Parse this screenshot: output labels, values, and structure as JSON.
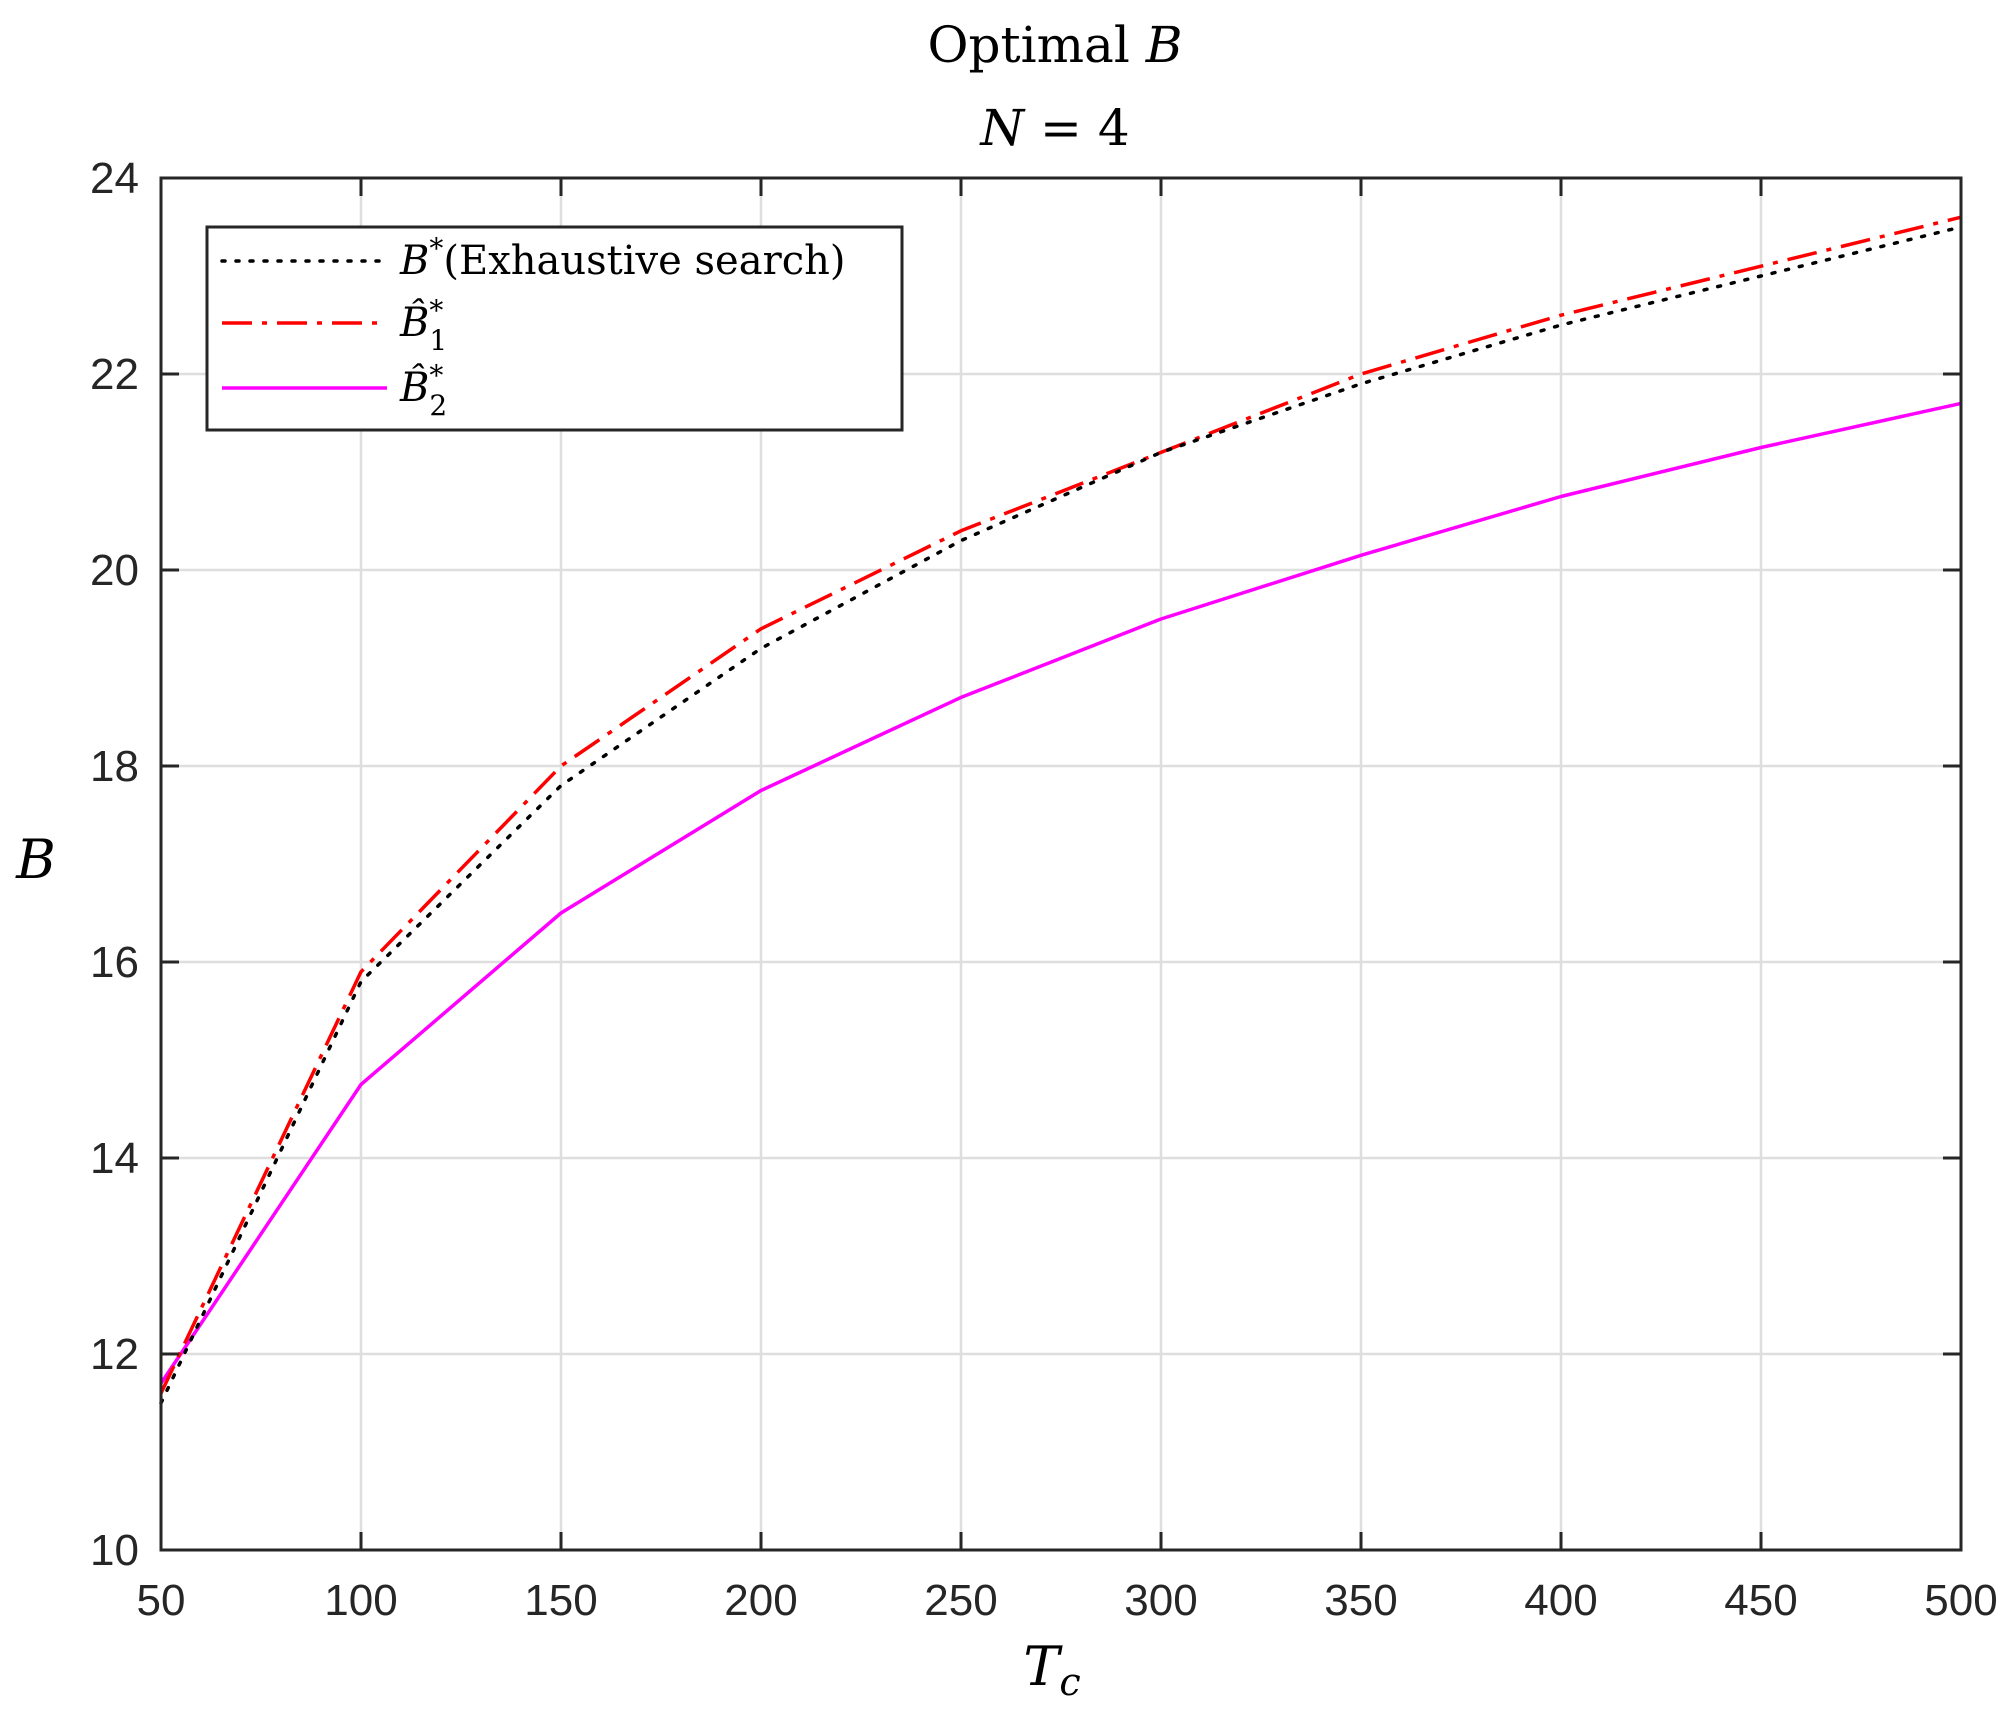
{
  "chart_data": {
    "type": "line",
    "title": "Optimal B",
    "title_parts": {
      "prefix": "Optimal ",
      "variable": "B"
    },
    "subtitle": "N = 4",
    "subtitle_parts": {
      "lhs": "N",
      "op": " = ",
      "rhs": "4"
    },
    "xlabel": "Tc",
    "xlabel_parts": {
      "main": "T",
      "sub": "c"
    },
    "ylabel": "B",
    "xlim": [
      50,
      500
    ],
    "ylim": [
      10,
      24
    ],
    "xticks": [
      50,
      100,
      150,
      200,
      250,
      300,
      350,
      400,
      450,
      500
    ],
    "yticks": [
      10,
      12,
      14,
      16,
      18,
      20,
      22,
      24
    ],
    "grid": true,
    "legend_position": "top-left",
    "x": [
      50,
      100,
      150,
      200,
      250,
      300,
      350,
      400,
      450,
      500
    ],
    "series": [
      {
        "name": "B*(Exhaustive search)",
        "name_parts": {
          "main": "B",
          "sup": "*",
          "rest": "(Exhaustive search)"
        },
        "style": "dotted",
        "color": "#000000",
        "values": [
          11.5,
          15.8,
          17.8,
          19.2,
          20.3,
          21.2,
          21.9,
          22.5,
          23.0,
          23.5
        ]
      },
      {
        "name": "B̂1*",
        "name_parts": {
          "main": "B̂",
          "sup": "*",
          "sub": "1"
        },
        "style": "dashdot",
        "color": "#ff0000",
        "values": [
          11.6,
          15.9,
          18.0,
          19.4,
          20.4,
          21.2,
          22.0,
          22.6,
          23.1,
          23.6
        ]
      },
      {
        "name": "B̂2*",
        "name_parts": {
          "main": "B̂",
          "sup": "*",
          "sub": "2"
        },
        "style": "solid",
        "color": "#ff00ff",
        "values": [
          11.7,
          14.75,
          16.5,
          17.75,
          18.7,
          19.5,
          20.15,
          20.75,
          21.25,
          21.7
        ]
      }
    ]
  }
}
